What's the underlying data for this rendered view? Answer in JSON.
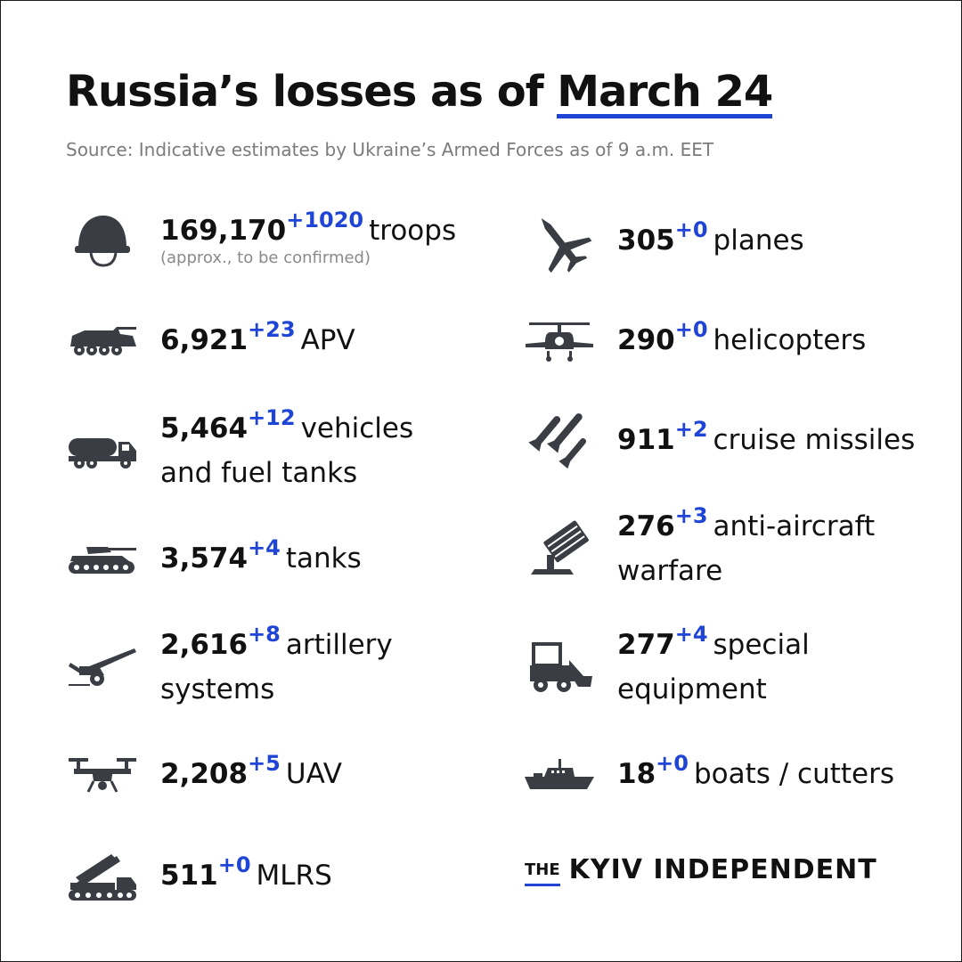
{
  "header": {
    "title_prefix": "Russia’s losses as of ",
    "title_date": "March 24",
    "source": "Source: Indicative estimates by Ukraine’s Armed Forces as of 9 a.m. EET"
  },
  "stats": {
    "troops": {
      "value": "169,170",
      "delta": "+1020",
      "label": "troops",
      "note": "(approx., to be confirmed)",
      "icon": "helmet-icon"
    },
    "apv": {
      "value": "6,921",
      "delta": "+23",
      "label": "APV",
      "icon": "apv-icon"
    },
    "vehicles": {
      "value": "5,464",
      "delta": "+12",
      "label": "vehicles",
      "label2": "and fuel tanks",
      "icon": "fuel-truck-icon"
    },
    "tanks": {
      "value": "3,574",
      "delta": "+4",
      "label": "tanks",
      "icon": "tank-icon"
    },
    "artillery": {
      "value": "2,616",
      "delta": "+8",
      "label": "artillery",
      "label2": "systems",
      "icon": "artillery-icon"
    },
    "uav": {
      "value": "2,208",
      "delta": "+5",
      "label": "UAV",
      "icon": "drone-icon"
    },
    "mlrs": {
      "value": "511",
      "delta": "+0",
      "label": "MLRS",
      "icon": "mlrs-icon"
    },
    "planes": {
      "value": "305",
      "delta": "+0",
      "label": "planes",
      "icon": "plane-icon"
    },
    "helicopters": {
      "value": "290",
      "delta": "+0",
      "label": "helicopters",
      "icon": "helicopter-icon"
    },
    "missiles": {
      "value": "911",
      "delta": "+2",
      "label": "cruise missiles",
      "icon": "missiles-icon"
    },
    "antiair": {
      "value": "276",
      "delta": "+3",
      "label": "anti-aircraft",
      "label2": "warfare",
      "icon": "anti-aircraft-icon"
    },
    "special": {
      "value": "277",
      "delta": "+4",
      "label": "special",
      "label2": "equipment",
      "icon": "loader-icon"
    },
    "boats": {
      "value": "18",
      "delta": "+0",
      "label": "boats / cutters",
      "icon": "boat-icon"
    }
  },
  "branding": {
    "the": "THE",
    "name": "KYIV INDEPENDENT"
  },
  "colors": {
    "accent": "#1f45d6",
    "icon": "#3a3d44",
    "text": "#111111",
    "muted": "#7b7b7b"
  }
}
